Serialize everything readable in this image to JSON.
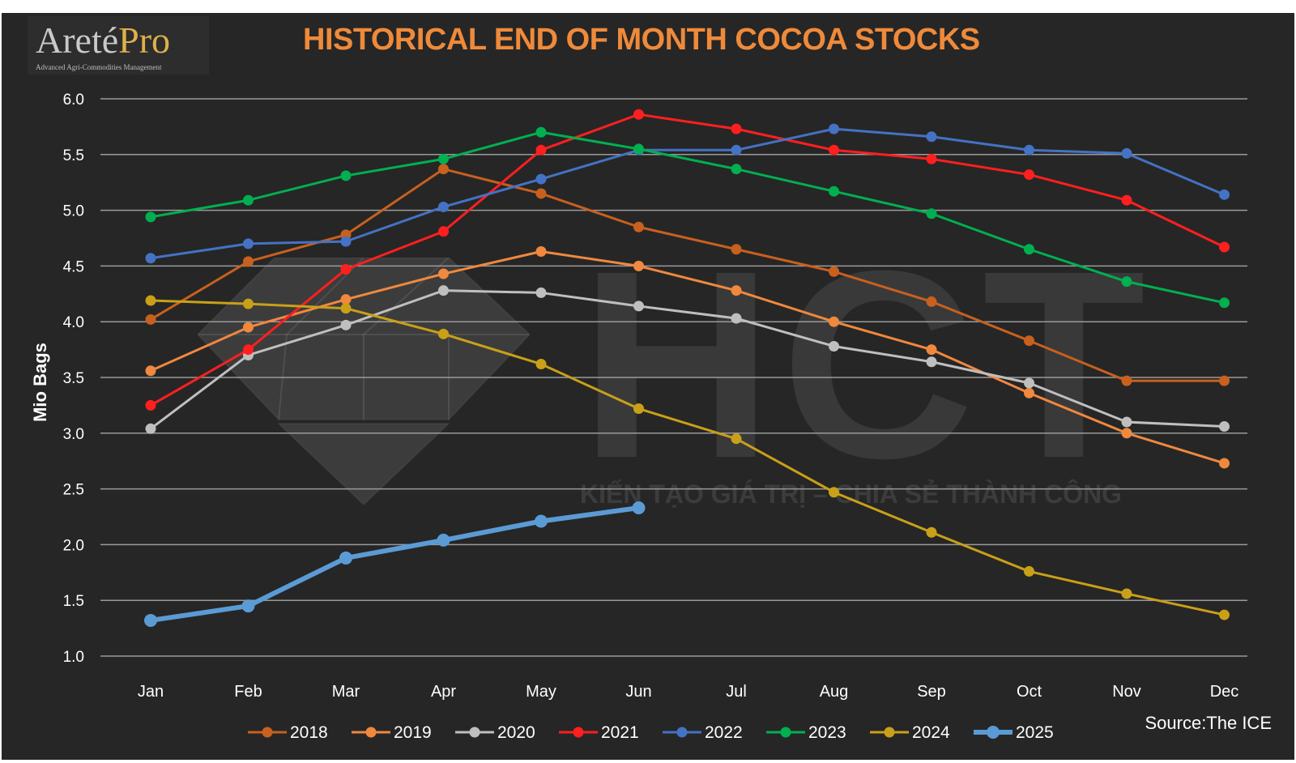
{
  "logo": {
    "name_main": "Areté",
    "name_pro": "Pro",
    "tagline": "Advanced Agri-Commodities Management"
  },
  "watermark": {
    "main": "HCT",
    "sub": "KIẾN TẠO GIÁ TRỊ – CHIA SẺ THÀNH CÔNG"
  },
  "source": "Source:The ICE",
  "chart_data": {
    "type": "line",
    "title": "HISTORICAL END OF MONTH COCOA STOCKS",
    "xlabel": "",
    "ylabel": "Mio Bags",
    "ylim": [
      1.0,
      6.0
    ],
    "yticks": [
      "1.0",
      "1.5",
      "2.0",
      "2.5",
      "3.0",
      "3.5",
      "4.0",
      "4.5",
      "5.0",
      "5.5",
      "6.0"
    ],
    "grid": true,
    "legend_position": "bottom",
    "categories": [
      "Jan",
      "Feb",
      "Mar",
      "Apr",
      "May",
      "Jun",
      "Jul",
      "Aug",
      "Sep",
      "Oct",
      "Nov",
      "Dec"
    ],
    "series": [
      {
        "name": "2018",
        "color": "#c8601e",
        "values": [
          4.02,
          4.54,
          4.78,
          5.37,
          5.15,
          4.85,
          4.65,
          4.45,
          4.18,
          3.83,
          3.47,
          3.47
        ]
      },
      {
        "name": "2019",
        "color": "#f0883e",
        "values": [
          3.56,
          3.95,
          4.2,
          4.43,
          4.63,
          4.5,
          4.28,
          4.0,
          3.75,
          3.36,
          3.0,
          2.73
        ]
      },
      {
        "name": "2020",
        "color": "#bfbfbf",
        "values": [
          3.04,
          3.7,
          3.97,
          4.28,
          4.26,
          4.14,
          4.03,
          3.78,
          3.64,
          3.45,
          3.1,
          3.06
        ]
      },
      {
        "name": "2021",
        "color": "#ff1f1f",
        "values": [
          3.25,
          3.75,
          4.47,
          4.81,
          5.54,
          5.86,
          5.73,
          5.54,
          5.46,
          5.32,
          5.09,
          4.67
        ]
      },
      {
        "name": "2022",
        "color": "#4472c4",
        "values": [
          4.57,
          4.7,
          4.72,
          5.03,
          5.28,
          5.54,
          5.54,
          5.73,
          5.66,
          5.54,
          5.51,
          5.14
        ]
      },
      {
        "name": "2023",
        "color": "#00b050",
        "values": [
          4.94,
          5.09,
          5.31,
          5.46,
          5.7,
          5.55,
          5.37,
          5.17,
          4.97,
          4.65,
          4.36,
          4.17
        ]
      },
      {
        "name": "2024",
        "color": "#c9a018",
        "values": [
          4.19,
          4.16,
          4.12,
          3.89,
          3.62,
          3.22,
          2.95,
          2.47,
          2.11,
          1.76,
          1.56,
          1.37
        ]
      },
      {
        "name": "2025",
        "color": "#5b9bd5",
        "width": "thick",
        "values": [
          1.32,
          1.45,
          1.88,
          2.04,
          2.21,
          2.33,
          null,
          null,
          null,
          null,
          null,
          null
        ]
      }
    ]
  }
}
